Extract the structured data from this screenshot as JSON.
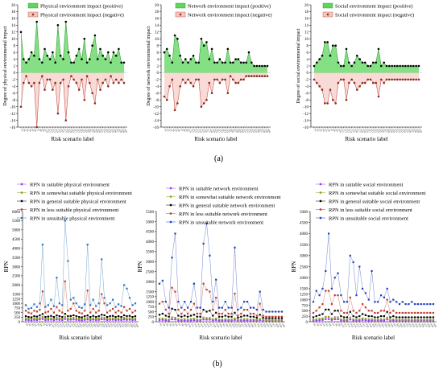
{
  "figure": {
    "label_a": "(a)",
    "label_b": "(b)"
  },
  "chart_data": [
    {
      "type": "area",
      "ylabel": "Degree of physical environmental impact",
      "xlabel": "Risk scenario label",
      "ylim": [
        -16,
        20
      ],
      "yticks": [
        -16,
        -14,
        -12,
        -10,
        -8,
        -6,
        -4,
        -2,
        0,
        2,
        4,
        6,
        8,
        10,
        12,
        14,
        16,
        18,
        20
      ],
      "legend_placement": "top",
      "series": [
        {
          "name": "Physical environment impact (positive)",
          "color": "#22aa22",
          "values": [
            12,
            4,
            3,
            4,
            6,
            5,
            15,
            4,
            3,
            7,
            5,
            4,
            6,
            3,
            14,
            5,
            4,
            15,
            6,
            3,
            3,
            5,
            7,
            4,
            10,
            3,
            4,
            8,
            11,
            4,
            7,
            5,
            4,
            6,
            3,
            6,
            5,
            7,
            3,
            3
          ]
        },
        {
          "name": "Physical environment impact (negative)",
          "color": "#c0392b",
          "values": [
            -10,
            -3,
            -1,
            -3,
            -4,
            -3,
            -16,
            -3,
            -1,
            -5,
            -2,
            -2,
            -5,
            -3,
            -12,
            -3,
            -2,
            -14,
            -4,
            -1,
            -2,
            -3,
            -5,
            -2,
            -8,
            -1,
            -3,
            -6,
            -9,
            -2,
            -5,
            -3,
            -2,
            -4,
            -1,
            -3,
            -2,
            -3,
            -2,
            -3
          ]
        }
      ]
    },
    {
      "type": "area",
      "ylabel": "Degree of network environmental impact",
      "xlabel": "Risk scenario label",
      "ylim": [
        -16,
        20
      ],
      "yticks": [
        -16,
        -14,
        -12,
        -10,
        -8,
        -6,
        -4,
        -2,
        0,
        2,
        4,
        6,
        8,
        10,
        12,
        14,
        16,
        18,
        20
      ],
      "legend_placement": "top",
      "series": [
        {
          "name": "Network environment impact (positive)",
          "color": "#22aa22",
          "values": [
            6,
            7,
            5,
            3,
            11,
            10,
            5,
            3,
            4,
            3,
            4,
            5,
            3,
            3,
            10,
            8,
            9,
            4,
            7,
            3,
            3,
            4,
            3,
            3,
            7,
            3,
            3,
            4,
            4,
            3,
            3,
            3,
            6,
            3,
            2,
            2,
            2,
            2,
            2,
            2
          ]
        },
        {
          "name": "Network environment impact (negative)",
          "color": "#c0392b",
          "values": [
            -7,
            -8,
            -4,
            -2,
            -11,
            -9,
            -4,
            -2,
            -3,
            -2,
            -3,
            -4,
            -2,
            -2,
            -10,
            -9,
            -8,
            -3,
            -6,
            -2,
            -2,
            -3,
            -2,
            -2,
            -6,
            -1,
            -2,
            -3,
            -3,
            -2,
            -2,
            -1,
            -1,
            -1,
            -1,
            -1,
            -1,
            -1,
            -1,
            -1
          ]
        }
      ]
    },
    {
      "type": "area",
      "ylabel": "Degree of social environmental impact",
      "xlabel": "Risk scenario label",
      "ylim": [
        -16,
        20
      ],
      "yticks": [
        -16,
        -14,
        -12,
        -10,
        -8,
        -6,
        -4,
        -2,
        0,
        2,
        4,
        6,
        8,
        10,
        12,
        14,
        16,
        18,
        20
      ],
      "legend_placement": "top",
      "series": [
        {
          "name": "Social environment impact (positive)",
          "color": "#22aa22",
          "values": [
            2,
            3,
            4,
            5,
            9,
            9,
            5,
            8,
            8,
            3,
            2,
            2,
            7,
            3,
            2,
            3,
            5,
            4,
            3,
            3,
            2,
            2,
            3,
            3,
            7,
            2,
            3,
            2,
            2,
            2,
            2,
            2,
            2,
            2,
            2,
            2,
            2,
            2,
            2,
            2
          ]
        },
        {
          "name": "Social environment impact (negative)",
          "color": "#c0392b",
          "values": [
            -2,
            -3,
            -4,
            -5,
            -9,
            -9,
            -5,
            -8,
            -9,
            -3,
            -2,
            -2,
            -8,
            -3,
            -2,
            -3,
            -5,
            -4,
            -3,
            -3,
            -2,
            -2,
            -3,
            -3,
            -7,
            -2,
            -3,
            -2,
            -2,
            -2,
            -2,
            -2,
            -2,
            -2,
            -2,
            -2,
            -2,
            -2,
            -2,
            -2
          ]
        }
      ]
    },
    {
      "type": "line",
      "ylabel": "RPN",
      "xlabel": "Risk scenario label",
      "ylim": [
        0,
        6000
      ],
      "yticks": [
        0,
        250,
        500,
        750,
        1000,
        1250,
        1500,
        2000,
        2500,
        3000,
        3500,
        4000,
        4500,
        5000,
        5500,
        6000
      ],
      "legend_placement": "top",
      "series": [
        {
          "name": "RPN in suitable physical environment",
          "color": "#9b30ff",
          "values": [
            100,
            90,
            80,
            100,
            90,
            120,
            150,
            90,
            100,
            110,
            90,
            120,
            100,
            90,
            150,
            100,
            110,
            120,
            100,
            90,
            80,
            100,
            120,
            90,
            110,
            90,
            100,
            130,
            120,
            90,
            100,
            110,
            90,
            100,
            90,
            120,
            100,
            110,
            90,
            100
          ]
        },
        {
          "name": "RPN in somewhat suitable physical environment",
          "color": "#8a9a1a",
          "values": [
            180,
            160,
            150,
            180,
            170,
            200,
            260,
            160,
            170,
            190,
            160,
            210,
            180,
            160,
            260,
            180,
            190,
            210,
            180,
            160,
            150,
            180,
            210,
            160,
            190,
            160,
            180,
            230,
            210,
            160,
            180,
            190,
            160,
            180,
            160,
            210,
            180,
            190,
            160,
            180
          ]
        },
        {
          "name": "RPN in general suitable physical environment",
          "color": "#000000",
          "values": [
            300,
            260,
            240,
            300,
            280,
            340,
            420,
            260,
            280,
            320,
            260,
            340,
            300,
            260,
            430,
            300,
            310,
            350,
            300,
            260,
            240,
            300,
            340,
            260,
            320,
            260,
            300,
            380,
            350,
            260,
            300,
            320,
            260,
            300,
            260,
            350,
            300,
            320,
            260,
            300
          ]
        },
        {
          "name": "RPN in less suitable physical environment",
          "color": "#c0392b",
          "values": [
            600,
            500,
            450,
            600,
            550,
            650,
            1650,
            500,
            550,
            700,
            500,
            800,
            600,
            500,
            2200,
            600,
            700,
            1000,
            600,
            500,
            450,
            600,
            1700,
            500,
            700,
            500,
            600,
            1500,
            1000,
            500,
            600,
            700,
            500,
            600,
            500,
            800,
            600,
            700,
            500,
            600
          ]
        },
        {
          "name": "RPN in unsuitable physical environment",
          "color": "#2e75b6",
          "values": [
            900,
            700,
            750,
            950,
            800,
            1000,
            4200,
            800,
            900,
            1200,
            850,
            2400,
            1000,
            900,
            5500,
            3300,
            1200,
            1300,
            1000,
            800,
            750,
            950,
            4200,
            900,
            1200,
            850,
            1000,
            3400,
            1300,
            900,
            1000,
            1200,
            800,
            950,
            850,
            2000,
            1800,
            1300,
            900,
            1000
          ]
        }
      ]
    },
    {
      "type": "line",
      "ylabel": "RPN",
      "xlabel": "Risk scenario label",
      "ylim": [
        0,
        5500
      ],
      "yticks": [
        0,
        250,
        500,
        750,
        1000,
        1250,
        1500,
        2000,
        2500,
        3000,
        3500,
        4000,
        4500,
        5000,
        5500
      ],
      "legend_placement": "top",
      "series": [
        {
          "name": "RPN in suitable network environment",
          "color": "#9b30ff",
          "values": [
            80,
            90,
            70,
            60,
            120,
            110,
            70,
            60,
            70,
            60,
            70,
            80,
            60,
            60,
            110,
            100,
            100,
            70,
            90,
            60,
            60,
            70,
            60,
            60,
            90,
            60,
            60,
            70,
            70,
            60,
            60,
            60,
            80,
            60,
            50,
            50,
            50,
            50,
            50,
            50
          ]
        },
        {
          "name": "RPN in somewhat suitable network environment",
          "color": "#8a9a1a",
          "values": [
            150,
            160,
            130,
            110,
            220,
            200,
            130,
            110,
            130,
            110,
            130,
            150,
            110,
            110,
            210,
            180,
            190,
            130,
            160,
            110,
            110,
            130,
            110,
            110,
            160,
            100,
            110,
            130,
            130,
            110,
            110,
            100,
            140,
            100,
            90,
            90,
            90,
            90,
            90,
            90
          ]
        },
        {
          "name": "RPN in general suitable network environment",
          "color": "#000000",
          "values": [
            350,
            400,
            300,
            250,
            650,
            600,
            300,
            250,
            300,
            250,
            300,
            350,
            250,
            250,
            600,
            500,
            550,
            300,
            450,
            250,
            250,
            300,
            250,
            250,
            450,
            200,
            250,
            300,
            300,
            250,
            250,
            200,
            350,
            200,
            180,
            180,
            180,
            180,
            180,
            180
          ]
        },
        {
          "name": "RPN in less suitable network environment",
          "color": "#c0392b",
          "values": [
            900,
            1000,
            600,
            400,
            1700,
            1500,
            600,
            400,
            600,
            400,
            600,
            900,
            400,
            400,
            1900,
            1600,
            1500,
            600,
            1200,
            400,
            400,
            600,
            400,
            400,
            1400,
            300,
            400,
            600,
            600,
            400,
            400,
            300,
            900,
            300,
            250,
            250,
            250,
            250,
            250,
            250
          ]
        },
        {
          "name": "RPN in unsuitable network environment",
          "color": "#1f3fbf",
          "values": [
            1900,
            2050,
            1000,
            700,
            3200,
            4400,
            1000,
            700,
            1000,
            700,
            1000,
            1900,
            700,
            700,
            3900,
            4900,
            3300,
            1000,
            2100,
            700,
            700,
            1000,
            700,
            700,
            3700,
            600,
            700,
            1000,
            1000,
            700,
            700,
            600,
            1500,
            600,
            500,
            500,
            500,
            500,
            500,
            500
          ]
        }
      ]
    },
    {
      "type": "line",
      "ylabel": "RPN",
      "xlabel": "Risk scenario label",
      "ylim": [
        0,
        5000
      ],
      "yticks": [
        0,
        250,
        500,
        750,
        1000,
        1250,
        1500,
        2000,
        2500,
        3000,
        3500,
        4000,
        4500,
        5000
      ],
      "legend_placement": "top",
      "series": [
        {
          "name": "RPN in suitable social environment",
          "color": "#9b30ff",
          "values": [
            50,
            60,
            70,
            80,
            120,
            120,
            80,
            110,
            110,
            60,
            50,
            50,
            100,
            60,
            50,
            60,
            80,
            70,
            60,
            60,
            50,
            50,
            60,
            60,
            100,
            50,
            60,
            50,
            50,
            50,
            50,
            50,
            50,
            50,
            50,
            50,
            50,
            50,
            50,
            50
          ]
        },
        {
          "name": "RPN in somewhat suitable social environment",
          "color": "#8a9a1a",
          "values": [
            90,
            110,
            130,
            150,
            220,
            220,
            150,
            200,
            200,
            110,
            90,
            90,
            190,
            110,
            90,
            110,
            150,
            130,
            110,
            110,
            90,
            90,
            110,
            110,
            190,
            90,
            110,
            90,
            90,
            90,
            90,
            90,
            90,
            90,
            90,
            90,
            90,
            90,
            90,
            90
          ]
        },
        {
          "name": "RPN in general suitable social environment",
          "color": "#000000",
          "values": [
            200,
            250,
            300,
            350,
            550,
            550,
            350,
            500,
            500,
            250,
            200,
            200,
            450,
            250,
            200,
            250,
            350,
            300,
            250,
            250,
            200,
            200,
            250,
            250,
            450,
            200,
            250,
            200,
            200,
            200,
            200,
            200,
            200,
            200,
            200,
            200,
            200,
            200,
            200,
            200
          ]
        },
        {
          "name": "RPN in less suitable social environment",
          "color": "#c0392b",
          "values": [
            400,
            500,
            650,
            800,
            1400,
            1400,
            800,
            1200,
            1200,
            500,
            400,
            400,
            1100,
            500,
            400,
            500,
            800,
            650,
            500,
            500,
            400,
            400,
            500,
            500,
            1000,
            400,
            500,
            400,
            400,
            400,
            400,
            400,
            400,
            400,
            400,
            400,
            400,
            400,
            400,
            400
          ]
        },
        {
          "name": "RPN in unsuitable social environment",
          "color": "#1f3fbf",
          "values": [
            900,
            1400,
            1200,
            1500,
            2300,
            4000,
            1500,
            2000,
            2200,
            1200,
            900,
            900,
            3000,
            2700,
            1200,
            2500,
            1500,
            1300,
            1000,
            2300,
            900,
            900,
            1200,
            1100,
            1500,
            900,
            1000,
            900,
            800,
            900,
            800,
            800,
            900,
            800,
            800,
            800,
            800,
            800,
            800,
            800
          ]
        }
      ]
    }
  ]
}
